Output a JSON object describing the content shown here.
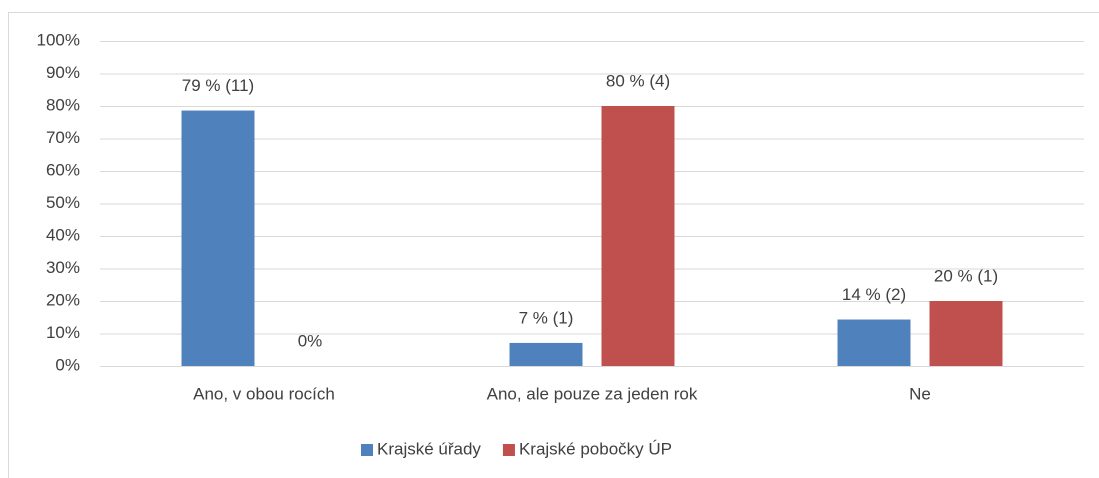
{
  "chart_data": {
    "type": "bar",
    "categories": [
      "Ano, v obou rocích",
      "Ano, ale pouze za jeden rok",
      "Ne"
    ],
    "series": [
      {
        "name": "Krajské úřady",
        "color": "#4f81bd",
        "values": [
          78.6,
          7.1,
          14.3
        ],
        "value_labels": [
          "79 % (11)",
          "7 % (1)",
          "14 % (2)"
        ]
      },
      {
        "name": "Krajské pobočky ÚP",
        "color": "#c0504d",
        "values": [
          0,
          80,
          20
        ],
        "value_labels": [
          "0%",
          "80 % (4)",
          "20 % (1)"
        ]
      }
    ],
    "ylim": [
      0,
      100
    ],
    "yticks": [
      {
        "value": 0,
        "label": "0%"
      },
      {
        "value": 10,
        "label": "10%"
      },
      {
        "value": 20,
        "label": "20%"
      },
      {
        "value": 30,
        "label": "30%"
      },
      {
        "value": 40,
        "label": "40%"
      },
      {
        "value": 50,
        "label": "50%"
      },
      {
        "value": 60,
        "label": "60%"
      },
      {
        "value": 70,
        "label": "70%"
      },
      {
        "value": 80,
        "label": "80%"
      },
      {
        "value": 90,
        "label": "90%"
      },
      {
        "value": 100,
        "label": "100%"
      }
    ],
    "grid": true,
    "legend": "bottom"
  }
}
